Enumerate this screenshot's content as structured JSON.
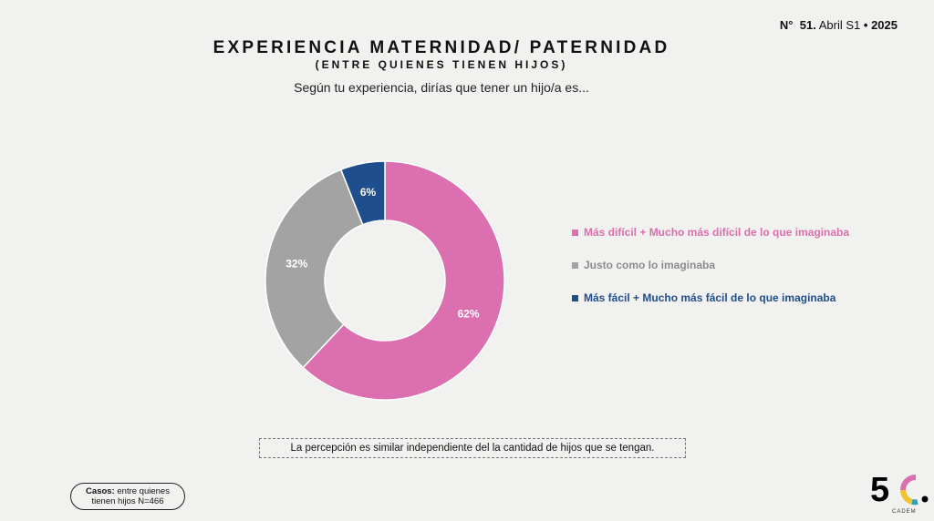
{
  "header": {
    "issue_prefix": "N°",
    "issue_number": "51.",
    "issue_period": "Abril S1",
    "issue_separator": "•",
    "issue_year": "2025"
  },
  "title": "EXPERIENCIA MATERNIDAD/ PATERNIDAD",
  "subtitle": "(ENTRE QUIENES TIENEN HIJOS)",
  "question": "Según tu experiencia, dirías que tener un hijo/a es...",
  "chart_data": {
    "type": "pie",
    "donut": true,
    "start_angle_deg": 0,
    "direction": "clockwise",
    "legend_position": "right",
    "slices": [
      {
        "name": "Más difícil + Mucho más difícil de lo que imaginaba",
        "value": 62,
        "label": "62%",
        "color": "#db6fb0"
      },
      {
        "name": "Justo como lo imaginaba",
        "value": 32,
        "label": "32%",
        "color": "#a3a3a3"
      },
      {
        "name": "Más fácil + Mucho más fácil de lo que imaginaba",
        "value": 6,
        "label": "6%",
        "color": "#1f4e8c"
      }
    ]
  },
  "note": "La percepción es similar independiente del la cantidad de hijos que se tengan.",
  "cases": {
    "label": "Casos:",
    "line1": "entre quienes",
    "line2": "tienen hijos N=466"
  },
  "logo": {
    "mark": "5C",
    "brand": "CADEM",
    "accent_colors": [
      "#db6fb0",
      "#f2c230",
      "#2aa3b8"
    ]
  }
}
